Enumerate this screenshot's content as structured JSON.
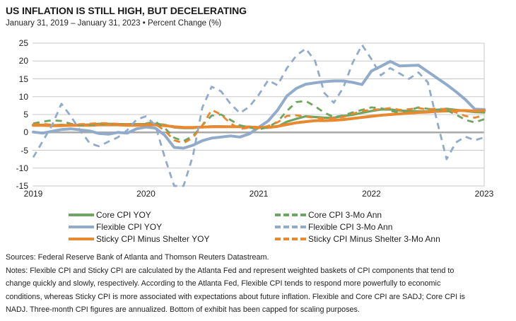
{
  "header": {
    "title": "US INFLATION IS STILL HIGH, BUT DECELERATING",
    "subtitle": "January 31, 2019 – January 31, 2023 • Percent Change (%)"
  },
  "chart_data": {
    "type": "line",
    "title": "US INFLATION IS STILL HIGH, BUT DECELERATING",
    "x_unit": "monthly",
    "x_range": [
      "2019-01",
      "2023-01"
    ],
    "xticks": [
      "2019",
      "2020",
      "2021",
      "2022",
      "2023"
    ],
    "xtick_month_index": [
      0,
      12,
      24,
      36,
      48
    ],
    "yticks": [
      25,
      20,
      15,
      10,
      5,
      0,
      -5,
      -10,
      -15
    ],
    "ylim": [
      -15,
      25
    ],
    "grid": "horizontal",
    "legend_position": "bottom",
    "note": "values below -15 are capped at -15 for scaling",
    "colors": {
      "green": "#6FA563",
      "blue": "#91ABCB",
      "orange": "#E8882F",
      "gridline": "#C9C9C9",
      "zeroline": "#A9A9A9"
    },
    "series": [
      {
        "name": "Core CPI YOY",
        "color": "green",
        "style": "solid",
        "width": 3.2,
        "values": [
          2.2,
          2.1,
          2.0,
          2.1,
          2.0,
          2.1,
          2.2,
          2.4,
          2.4,
          2.3,
          2.3,
          2.3,
          2.3,
          2.4,
          2.1,
          1.4,
          1.2,
          1.2,
          1.5,
          1.7,
          1.7,
          1.6,
          1.6,
          1.6,
          1.4,
          1.3,
          1.6,
          3.0,
          3.8,
          4.5,
          4.3,
          4.1,
          4.1,
          4.6,
          4.9,
          5.5,
          6.0,
          6.4,
          6.4,
          6.1,
          6.0,
          5.9,
          5.9,
          6.3,
          6.6,
          6.3,
          6.0,
          5.7,
          5.6
        ]
      },
      {
        "name": "Flexible CPI YOY",
        "color": "blue",
        "style": "solid",
        "width": 4,
        "values": [
          0.1,
          -0.2,
          0.3,
          0.8,
          1.0,
          0.7,
          0.4,
          -0.3,
          -0.5,
          0.0,
          -0.2,
          1.0,
          1.5,
          1.2,
          -0.8,
          -4.2,
          -4.4,
          -3.6,
          -2.3,
          -1.6,
          -1.3,
          -1.0,
          -1.3,
          -0.4,
          1.4,
          3.2,
          6.2,
          10.2,
          12.3,
          13.5,
          13.9,
          14.2,
          14.4,
          14.4,
          14.0,
          13.4,
          17.2,
          18.5,
          19.9,
          18.6,
          18.7,
          18.8,
          17.0,
          15.2,
          13.4,
          11.4,
          9.2,
          6.5,
          6.4
        ]
      },
      {
        "name": "Sticky CPI Minus Shelter YOY",
        "color": "orange",
        "style": "solid",
        "width": 4,
        "values": [
          2.0,
          2.0,
          1.9,
          1.9,
          2.0,
          2.0,
          2.0,
          2.1,
          2.1,
          2.1,
          2.0,
          2.0,
          2.1,
          2.1,
          1.9,
          1.6,
          1.4,
          1.4,
          1.5,
          1.6,
          1.6,
          1.6,
          1.6,
          1.5,
          1.4,
          1.4,
          1.7,
          2.2,
          2.7,
          3.0,
          3.3,
          3.3,
          3.4,
          3.6,
          3.9,
          4.2,
          4.5,
          4.8,
          5.0,
          5.2,
          5.4,
          5.6,
          5.7,
          5.9,
          6.0,
          6.1,
          6.1,
          6.0,
          6.1
        ]
      },
      {
        "name": "Core CPI 3-Mo Ann",
        "color": "green",
        "style": "dashed",
        "width": 2.8,
        "values": [
          2.5,
          3.0,
          3.4,
          3.2,
          2.4,
          2.0,
          2.1,
          2.3,
          2.4,
          2.3,
          2.3,
          2.3,
          2.5,
          3.0,
          1.2,
          -1.5,
          -2.4,
          -1.0,
          2.0,
          4.7,
          5.0,
          3.5,
          2.0,
          1.4,
          0.8,
          1.5,
          3.0,
          6.0,
          8.5,
          8.8,
          7.3,
          5.5,
          4.3,
          4.7,
          5.6,
          6.3,
          7.0,
          6.8,
          6.0,
          5.6,
          6.2,
          7.0,
          6.6,
          6.4,
          6.2,
          5.0,
          3.5,
          2.8,
          3.7
        ]
      },
      {
        "name": "Flexible CPI 3-Mo Ann",
        "color": "blue",
        "style": "dashed",
        "width": 2.8,
        "values": [
          -7.0,
          -2.5,
          2.0,
          8.0,
          4.5,
          0.5,
          -3.0,
          -3.9,
          -2.6,
          -1.4,
          0.6,
          3.6,
          4.5,
          2.0,
          -7.0,
          -15.0,
          -15.0,
          -6.5,
          7.0,
          12.8,
          11.5,
          8.0,
          5.4,
          7.2,
          10.5,
          14.6,
          13.2,
          18.0,
          21.5,
          23.5,
          20.0,
          11.0,
          8.3,
          12.5,
          19.5,
          24.5,
          20.5,
          16.0,
          18.0,
          16.5,
          15.0,
          16.8,
          14.0,
          3.0,
          -7.5,
          -2.8,
          -1.2,
          -2.2,
          -1.4
        ]
      },
      {
        "name": "Sticky CPI Minus Shelter 3-Mo Ann",
        "color": "orange",
        "style": "dashed",
        "width": 2.8,
        "values": [
          2.2,
          2.4,
          2.1,
          2.0,
          2.2,
          2.3,
          2.4,
          2.6,
          2.5,
          2.4,
          2.3,
          2.2,
          2.4,
          2.3,
          0.5,
          -2.2,
          -3.0,
          -1.5,
          2.0,
          6.3,
          5.0,
          2.5,
          1.0,
          1.3,
          1.2,
          1.8,
          2.8,
          4.6,
          4.8,
          4.4,
          4.1,
          3.9,
          4.0,
          4.3,
          5.2,
          6.0,
          6.3,
          6.5,
          6.8,
          6.3,
          6.5,
          6.8,
          6.4,
          6.7,
          6.4,
          5.6,
          4.6,
          4.1,
          4.8
        ]
      }
    ]
  },
  "footer": {
    "lines": [
      "Sources: Federal Reserve Bank of Atlanta and Thomson Reuters Datastream.",
      "Notes: Flexible CPI and Sticky CPI are calculated by the Atlanta Fed and represent weighted baskets of CPI components that tend to",
      "change quickly and slowly, respectively. According to the Atlanta Fed, Flexible CPI tends to respond more powerfully to economic",
      "conditions, whereas Sticky CPI is more associated with expectations about future inflation. Flexible and Core CPI are SADJ; Core CPI is",
      "NADJ. Three-month CPI figures are annualized. Bottom of exhibit has been capped for scaling purposes."
    ]
  }
}
